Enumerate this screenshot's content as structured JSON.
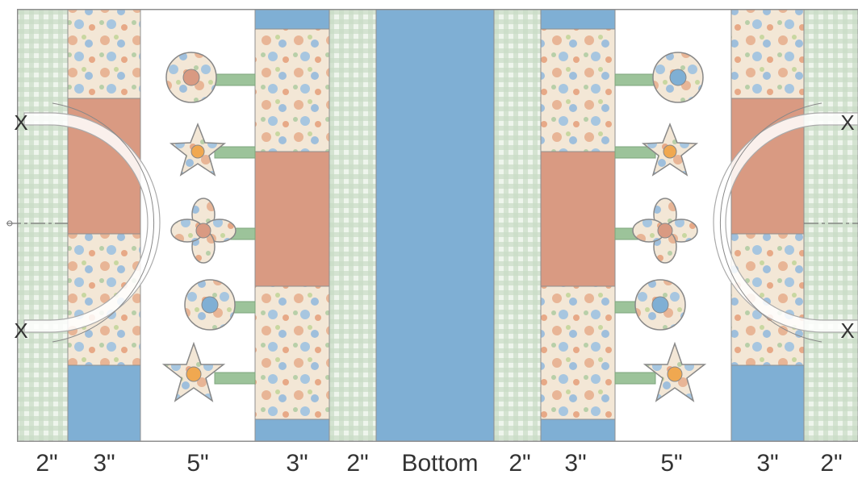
{
  "labels": {
    "l1": "2\"",
    "l2": "3\"",
    "l3": "5\"",
    "l4": "3\"",
    "l5": "2\"",
    "center": "Bottom",
    "r5": "2\"",
    "r4": "3\"",
    "r3": "5\"",
    "r2": "3\"",
    "r1": "2\""
  },
  "marks": {
    "x": "X"
  },
  "colors": {
    "blue": "#7fafd4",
    "terracotta": "#d99a82",
    "gingham": "#cddfcb",
    "floral_bg": "#f3e7d6",
    "stem": "#9cc39a",
    "border": "#8f8f8f",
    "white": "#ffffff"
  },
  "icons": [
    "flower-circle-icon",
    "flower-star-icon",
    "flower-pinwheel-icon"
  ]
}
